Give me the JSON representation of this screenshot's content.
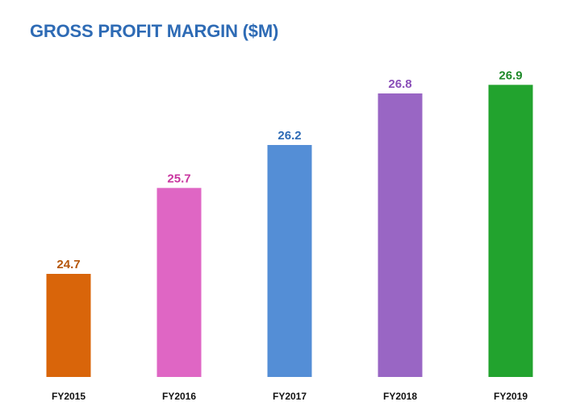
{
  "chart_data": {
    "type": "bar",
    "title": "GROSS PROFIT MARGIN ($M)",
    "categories": [
      "FY2015",
      "FY2016",
      "FY2017",
      "FY2018",
      "FY2019"
    ],
    "values": [
      24.7,
      25.7,
      26.2,
      26.8,
      26.9
    ],
    "value_labels": [
      "24.7",
      "25.7",
      "26.2",
      "26.8",
      "26.9"
    ],
    "colors": [
      "#d9650a",
      "#df66c4",
      "#548ed6",
      "#9966c4",
      "#22a32e"
    ],
    "label_colors": [
      "#b5560a",
      "#c9359f",
      "#2e6bb5",
      "#8a4fb8",
      "#1f8a2a"
    ],
    "title_color": "#2e6bb5",
    "ylim": [
      23.5,
      27.1
    ],
    "grid": false,
    "legend": "none",
    "xlabel": "",
    "ylabel": ""
  }
}
